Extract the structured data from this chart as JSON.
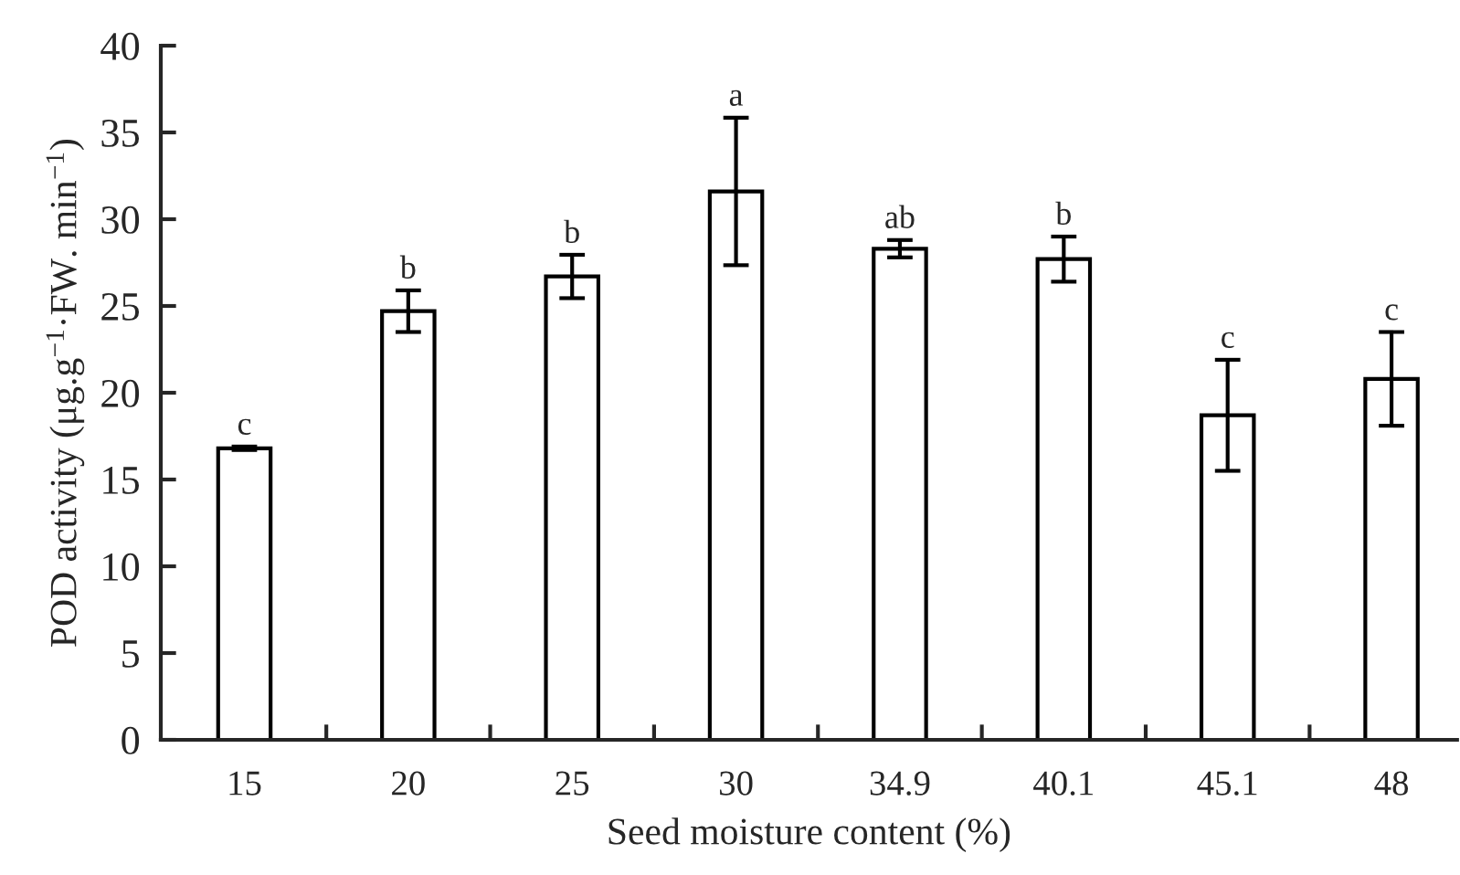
{
  "chart_data": {
    "type": "bar",
    "xlabel": "Seed moisture content (%)",
    "ylabel": "POD activity (μg.g$^{−1}$·FW. min$^{−1}$)",
    "categories": [
      "15",
      "20",
      "25",
      "30",
      "34.9",
      "40.1",
      "45.1",
      "48"
    ],
    "values": [
      16.8,
      24.7,
      26.7,
      31.6,
      28.3,
      27.7,
      18.7,
      20.8
    ],
    "errors": [
      0.1,
      1.2,
      1.25,
      4.25,
      0.5,
      1.3,
      3.2,
      2.7
    ],
    "color": "#ffffff",
    "ylim": [
      0,
      40
    ],
    "yticks": [
      0,
      5,
      10,
      15,
      20,
      25,
      30,
      35,
      40
    ],
    "grid": false,
    "legend": false,
    "annotations": [
      {
        "text": "c",
        "x": "15",
        "y": 16.9
      },
      {
        "text": "b",
        "x": "20",
        "y": 25.9
      },
      {
        "text": "b",
        "x": "25",
        "y": 27.95
      },
      {
        "text": "a",
        "x": "30",
        "y": 35.85
      },
      {
        "text": "ab",
        "x": "34.9",
        "y": 28.8
      },
      {
        "text": "b",
        "x": "40.1",
        "y": 29.0
      },
      {
        "text": "c",
        "x": "45.1",
        "y": 21.9
      },
      {
        "text": "c",
        "x": "48",
        "y": 23.5
      }
    ]
  }
}
